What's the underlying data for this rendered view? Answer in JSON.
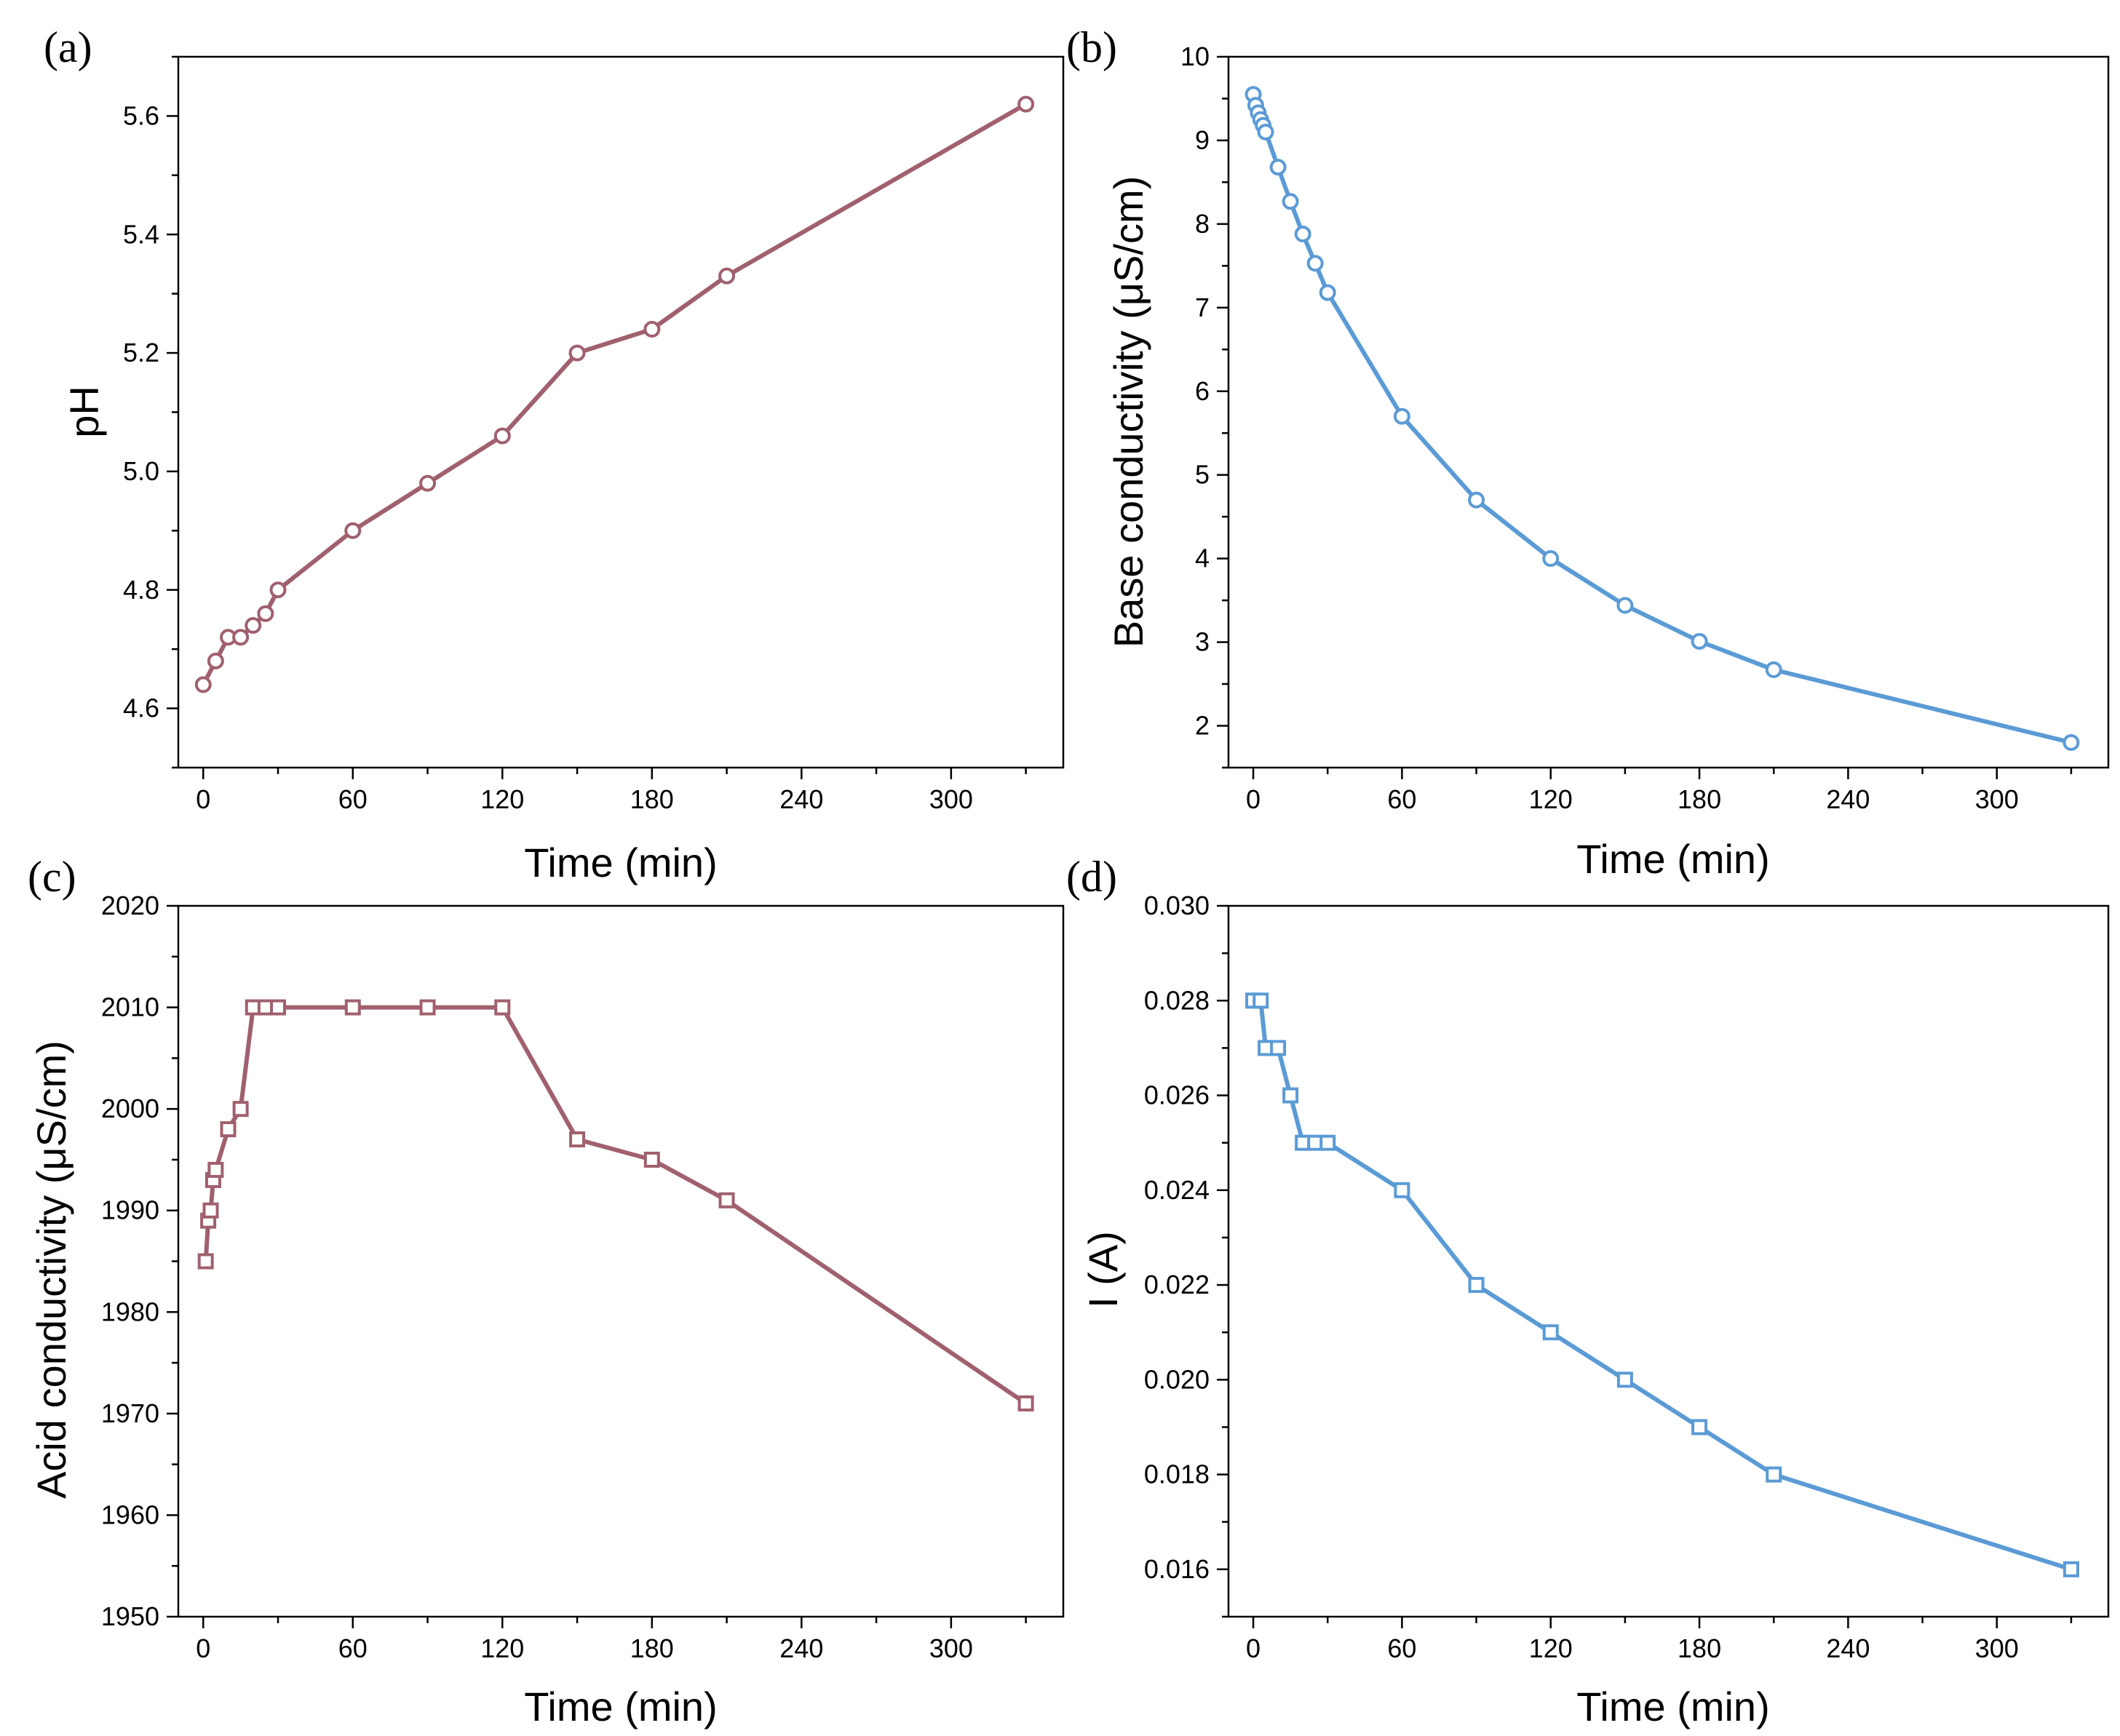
{
  "chart_data": [
    {
      "panel": "(a)",
      "type": "line",
      "xlabel": "Time (min)",
      "ylabel": "pH",
      "xlim": [
        -10,
        345
      ],
      "ylim": [
        4.5,
        5.7
      ],
      "xticks": [
        0,
        60,
        120,
        180,
        240,
        300
      ],
      "yticks": [
        4.6,
        4.8,
        5.0,
        5.2,
        5.4,
        5.6
      ],
      "yfmt": 1,
      "marker": "circle",
      "color": "#a0606e",
      "series": [
        {
          "x": [
            0,
            5,
            10,
            15,
            20,
            25,
            30,
            60,
            90,
            120,
            150,
            180,
            210,
            330
          ],
          "y": [
            4.64,
            4.68,
            4.72,
            4.72,
            4.74,
            4.76,
            4.8,
            4.9,
            4.98,
            5.06,
            5.2,
            5.24,
            5.33,
            5.62
          ]
        }
      ]
    },
    {
      "panel": "(b)",
      "type": "line",
      "xlabel": "Time (min)",
      "ylabel": "Base conductivity (μS/cm)",
      "xlim": [
        -10,
        345
      ],
      "ylim": [
        1.5,
        10
      ],
      "xticks": [
        0,
        60,
        120,
        180,
        240,
        300
      ],
      "yticks": [
        2,
        3,
        4,
        5,
        6,
        7,
        8,
        9,
        10
      ],
      "yfmt": 0,
      "marker": "circle",
      "color": "#5b9bd5",
      "series": [
        {
          "x": [
            0,
            1,
            2,
            3,
            4,
            5,
            10,
            15,
            20,
            25,
            30,
            60,
            90,
            120,
            150,
            180,
            210,
            330
          ],
          "y": [
            9.55,
            9.42,
            9.33,
            9.25,
            9.18,
            9.1,
            8.68,
            8.27,
            7.88,
            7.53,
            7.18,
            5.7,
            4.7,
            4.0,
            3.44,
            3.01,
            2.67,
            1.8
          ]
        }
      ]
    },
    {
      "panel": "(c)",
      "type": "line",
      "xlabel": "Time (min)",
      "ylabel": "Acid conductivity (μS/cm)",
      "xlim": [
        -10,
        345
      ],
      "ylim": [
        1950,
        2020
      ],
      "xticks": [
        0,
        60,
        120,
        180,
        240,
        300
      ],
      "yticks": [
        1950,
        1960,
        1970,
        1980,
        1990,
        2000,
        2010,
        2020
      ],
      "yfmt": 0,
      "marker": "square",
      "color": "#a0606e",
      "series": [
        {
          "x": [
            1,
            2,
            3,
            4,
            5,
            10,
            15,
            20,
            25,
            30,
            60,
            90,
            120,
            150,
            180,
            210,
            330
          ],
          "y": [
            1985,
            1989,
            1990,
            1993,
            1994,
            1998,
            2000,
            2010,
            2010,
            2010,
            2010,
            2010,
            2010,
            1997,
            1995,
            1991,
            1971
          ]
        }
      ]
    },
    {
      "panel": "(d)",
      "type": "line",
      "xlabel": "Time (min)",
      "ylabel": "I (A)",
      "xlim": [
        -10,
        345
      ],
      "ylim": [
        0.015,
        0.03
      ],
      "xticks": [
        0,
        60,
        120,
        180,
        240,
        300
      ],
      "yticks": [
        0.016,
        0.018,
        0.02,
        0.022,
        0.024,
        0.026,
        0.028,
        0.03
      ],
      "yfmt": 3,
      "marker": "square",
      "color": "#5b9bd5",
      "series": [
        {
          "x": [
            0,
            3,
            5,
            10,
            15,
            20,
            25,
            30,
            60,
            90,
            120,
            150,
            180,
            210,
            330
          ],
          "y": [
            0.028,
            0.028,
            0.027,
            0.027,
            0.026,
            0.025,
            0.025,
            0.025,
            0.024,
            0.022,
            0.021,
            0.02,
            0.019,
            0.018,
            0.016
          ]
        }
      ]
    }
  ]
}
